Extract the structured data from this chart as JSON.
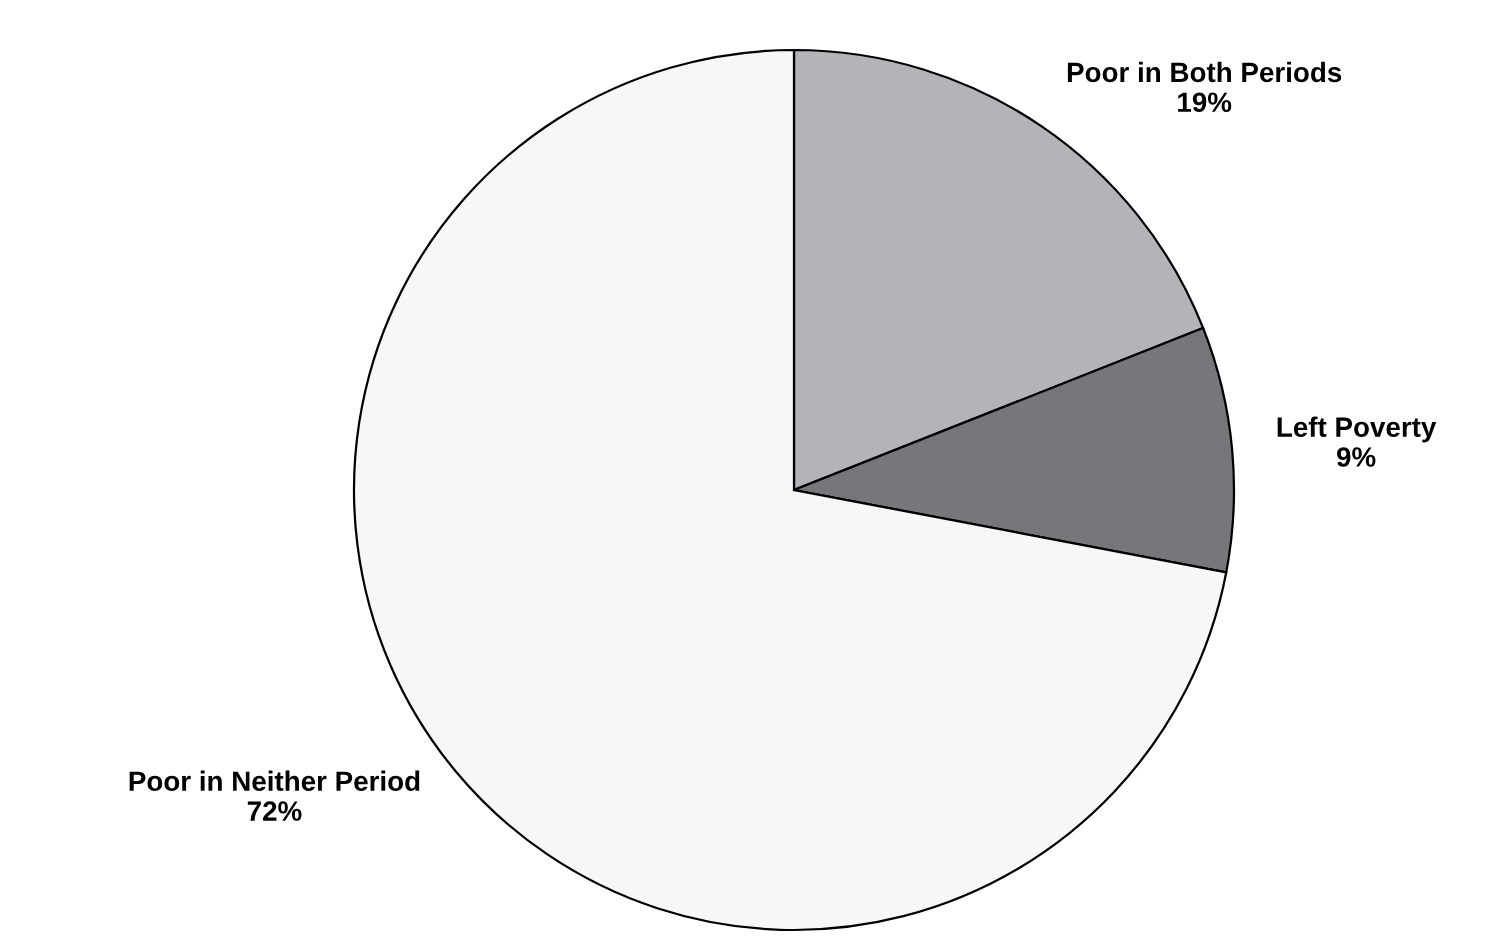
{
  "chart_data": {
    "type": "pie",
    "categories": [
      "Poor in Both Periods",
      "Left Poverty",
      "Poor in Neither Period"
    ],
    "values": [
      19,
      9,
      72
    ],
    "colors": [
      "#b3b4b8",
      "#75777b",
      "#f7f7f7"
    ],
    "value_labels": [
      "19%",
      "9%",
      "72%"
    ]
  }
}
